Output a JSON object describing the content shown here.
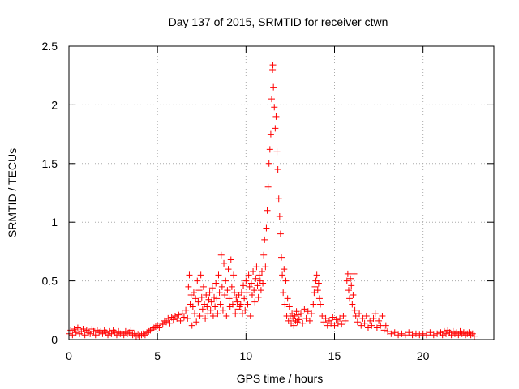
{
  "chart_data": {
    "type": "scatter",
    "title": "Day 137 of 2015, SRMTID for receiver ctwn",
    "xlabel": "GPS time / hours",
    "ylabel": "SRMTID / TECUs",
    "xlim": [
      0,
      24.0
    ],
    "ylim": [
      0,
      2.5
    ],
    "xticks": [
      "0",
      "5",
      "10",
      "15",
      "20"
    ],
    "yticks": [
      "0",
      "0.5",
      "1",
      "1.5",
      "2",
      "2.5"
    ],
    "grid": true,
    "marker": "+",
    "color": "#ff0000",
    "series": [
      {
        "name": "SRMTID",
        "points": [
          [
            0.0,
            0.05
          ],
          [
            0.1,
            0.08
          ],
          [
            0.2,
            0.04
          ],
          [
            0.3,
            0.09
          ],
          [
            0.4,
            0.06
          ],
          [
            0.5,
            0.1
          ],
          [
            0.6,
            0.05
          ],
          [
            0.7,
            0.07
          ],
          [
            0.8,
            0.09
          ],
          [
            0.9,
            0.04
          ],
          [
            1.0,
            0.08
          ],
          [
            1.1,
            0.06
          ],
          [
            1.2,
            0.05
          ],
          [
            1.3,
            0.09
          ],
          [
            1.4,
            0.07
          ],
          [
            1.5,
            0.04
          ],
          [
            1.6,
            0.08
          ],
          [
            1.7,
            0.06
          ],
          [
            1.8,
            0.07
          ],
          [
            1.9,
            0.05
          ],
          [
            2.0,
            0.08
          ],
          [
            2.1,
            0.06
          ],
          [
            2.2,
            0.04
          ],
          [
            2.3,
            0.07
          ],
          [
            2.4,
            0.05
          ],
          [
            2.5,
            0.08
          ],
          [
            2.6,
            0.06
          ],
          [
            2.7,
            0.04
          ],
          [
            2.8,
            0.07
          ],
          [
            2.9,
            0.05
          ],
          [
            3.0,
            0.06
          ],
          [
            3.1,
            0.04
          ],
          [
            3.2,
            0.07
          ],
          [
            3.3,
            0.05
          ],
          [
            3.4,
            0.06
          ],
          [
            3.5,
            0.08
          ],
          [
            3.6,
            0.04
          ],
          [
            3.7,
            0.05
          ],
          [
            3.8,
            0.03
          ],
          [
            3.9,
            0.04
          ],
          [
            4.0,
            0.03
          ],
          [
            4.1,
            0.04
          ],
          [
            4.2,
            0.05
          ],
          [
            4.3,
            0.04
          ],
          [
            4.4,
            0.06
          ],
          [
            4.5,
            0.07
          ],
          [
            4.6,
            0.08
          ],
          [
            4.7,
            0.09
          ],
          [
            4.8,
            0.1
          ],
          [
            4.9,
            0.11
          ],
          [
            5.0,
            0.12
          ],
          [
            5.1,
            0.1
          ],
          [
            5.2,
            0.14
          ],
          [
            5.3,
            0.13
          ],
          [
            5.4,
            0.16
          ],
          [
            5.5,
            0.15
          ],
          [
            5.6,
            0.18
          ],
          [
            5.7,
            0.14
          ],
          [
            5.8,
            0.19
          ],
          [
            5.9,
            0.17
          ],
          [
            6.0,
            0.2
          ],
          [
            6.1,
            0.18
          ],
          [
            6.2,
            0.21
          ],
          [
            6.3,
            0.16
          ],
          [
            6.4,
            0.22
          ],
          [
            6.5,
            0.19
          ],
          [
            6.6,
            0.25
          ],
          [
            6.7,
            0.18
          ],
          [
            6.75,
            0.45
          ],
          [
            6.8,
            0.55
          ],
          [
            6.85,
            0.3
          ],
          [
            6.9,
            0.38
          ],
          [
            6.95,
            0.12
          ],
          [
            7.0,
            0.28
          ],
          [
            7.05,
            0.4
          ],
          [
            7.1,
            0.22
          ],
          [
            7.15,
            0.35
          ],
          [
            7.2,
            0.15
          ],
          [
            7.25,
            0.5
          ],
          [
            7.3,
            0.32
          ],
          [
            7.35,
            0.42
          ],
          [
            7.4,
            0.2
          ],
          [
            7.45,
            0.55
          ],
          [
            7.5,
            0.36
          ],
          [
            7.55,
            0.26
          ],
          [
            7.6,
            0.45
          ],
          [
            7.65,
            0.3
          ],
          [
            7.7,
            0.18
          ],
          [
            7.75,
            0.38
          ],
          [
            7.8,
            0.28
          ],
          [
            7.85,
            0.22
          ],
          [
            7.9,
            0.34
          ],
          [
            7.95,
            0.4
          ],
          [
            8.0,
            0.25
          ],
          [
            8.05,
            0.32
          ],
          [
            8.1,
            0.44
          ],
          [
            8.15,
            0.2
          ],
          [
            8.2,
            0.36
          ],
          [
            8.25,
            0.28
          ],
          [
            8.3,
            0.48
          ],
          [
            8.35,
            0.35
          ],
          [
            8.4,
            0.22
          ],
          [
            8.45,
            0.55
          ],
          [
            8.5,
            0.4
          ],
          [
            8.55,
            0.3
          ],
          [
            8.6,
            0.72
          ],
          [
            8.65,
            0.45
          ],
          [
            8.7,
            0.25
          ],
          [
            8.75,
            0.65
          ],
          [
            8.8,
            0.38
          ],
          [
            8.85,
            0.5
          ],
          [
            8.9,
            0.2
          ],
          [
            8.95,
            0.42
          ],
          [
            9.0,
            0.6
          ],
          [
            9.05,
            0.35
          ],
          [
            9.1,
            0.28
          ],
          [
            9.15,
            0.68
          ],
          [
            9.2,
            0.45
          ],
          [
            9.25,
            0.3
          ],
          [
            9.3,
            0.55
          ],
          [
            9.35,
            0.4
          ],
          [
            9.4,
            0.22
          ],
          [
            9.45,
            0.36
          ],
          [
            9.5,
            0.32
          ],
          [
            9.55,
            0.26
          ],
          [
            9.6,
            0.38
          ],
          [
            9.65,
            0.28
          ],
          [
            9.7,
            0.3
          ],
          [
            9.75,
            0.4
          ],
          [
            9.8,
            0.22
          ],
          [
            9.85,
            0.46
          ],
          [
            9.9,
            0.35
          ],
          [
            9.95,
            0.25
          ],
          [
            10.0,
            0.5
          ],
          [
            10.05,
            0.4
          ],
          [
            10.1,
            0.3
          ],
          [
            10.15,
            0.55
          ],
          [
            10.2,
            0.45
          ],
          [
            10.25,
            0.2
          ],
          [
            10.3,
            0.48
          ],
          [
            10.35,
            0.38
          ],
          [
            10.4,
            0.58
          ],
          [
            10.45,
            0.42
          ],
          [
            10.5,
            0.32
          ],
          [
            10.55,
            0.52
          ],
          [
            10.6,
            0.62
          ],
          [
            10.65,
            0.46
          ],
          [
            10.7,
            0.36
          ],
          [
            10.75,
            0.55
          ],
          [
            10.8,
            0.5
          ],
          [
            10.85,
            0.42
          ],
          [
            10.9,
            0.58
          ],
          [
            10.95,
            0.48
          ],
          [
            11.0,
            0.72
          ],
          [
            11.05,
            0.85
          ],
          [
            11.1,
            0.62
          ],
          [
            11.15,
            0.95
          ],
          [
            11.2,
            1.1
          ],
          [
            11.25,
            1.3
          ],
          [
            11.3,
            1.5
          ],
          [
            11.35,
            1.62
          ],
          [
            11.4,
            1.75
          ],
          [
            11.45,
            2.05
          ],
          [
            11.5,
            2.3
          ],
          [
            11.52,
            2.34
          ],
          [
            11.55,
            2.15
          ],
          [
            11.6,
            1.98
          ],
          [
            11.65,
            1.8
          ],
          [
            11.7,
            1.9
          ],
          [
            11.75,
            1.6
          ],
          [
            11.8,
            1.45
          ],
          [
            11.85,
            1.2
          ],
          [
            11.9,
            1.05
          ],
          [
            11.95,
            0.9
          ],
          [
            12.0,
            0.7
          ],
          [
            12.05,
            0.55
          ],
          [
            12.1,
            0.4
          ],
          [
            12.15,
            0.6
          ],
          [
            12.2,
            0.3
          ],
          [
            12.25,
            0.5
          ],
          [
            12.3,
            0.2
          ],
          [
            12.35,
            0.35
          ],
          [
            12.4,
            0.16
          ],
          [
            12.45,
            0.28
          ],
          [
            12.5,
            0.2
          ],
          [
            12.55,
            0.14
          ],
          [
            12.6,
            0.22
          ],
          [
            12.65,
            0.18
          ],
          [
            12.7,
            0.12
          ],
          [
            12.75,
            0.2
          ],
          [
            12.8,
            0.16
          ],
          [
            12.85,
            0.24
          ],
          [
            12.9,
            0.15
          ],
          [
            12.95,
            0.21
          ],
          [
            13.0,
            0.17
          ],
          [
            13.1,
            0.22
          ],
          [
            13.2,
            0.14
          ],
          [
            13.3,
            0.26
          ],
          [
            13.4,
            0.18
          ],
          [
            13.5,
            0.24
          ],
          [
            13.6,
            0.16
          ],
          [
            13.7,
            0.22
          ],
          [
            13.8,
            0.3
          ],
          [
            13.85,
            0.4
          ],
          [
            13.9,
            0.45
          ],
          [
            13.95,
            0.5
          ],
          [
            14.0,
            0.55
          ],
          [
            14.05,
            0.42
          ],
          [
            14.1,
            0.48
          ],
          [
            14.15,
            0.35
          ],
          [
            14.2,
            0.3
          ],
          [
            14.3,
            0.2
          ],
          [
            14.4,
            0.15
          ],
          [
            14.5,
            0.18
          ],
          [
            14.6,
            0.12
          ],
          [
            14.7,
            0.16
          ],
          [
            14.8,
            0.14
          ],
          [
            14.9,
            0.19
          ],
          [
            15.0,
            0.12
          ],
          [
            15.1,
            0.17
          ],
          [
            15.2,
            0.14
          ],
          [
            15.3,
            0.18
          ],
          [
            15.4,
            0.13
          ],
          [
            15.5,
            0.2
          ],
          [
            15.6,
            0.16
          ],
          [
            15.7,
            0.5
          ],
          [
            15.75,
            0.56
          ],
          [
            15.8,
            0.42
          ],
          [
            15.85,
            0.35
          ],
          [
            15.9,
            0.52
          ],
          [
            15.95,
            0.46
          ],
          [
            16.0,
            0.3
          ],
          [
            16.05,
            0.38
          ],
          [
            16.1,
            0.56
          ],
          [
            16.15,
            0.25
          ],
          [
            16.2,
            0.2
          ],
          [
            16.3,
            0.15
          ],
          [
            16.4,
            0.22
          ],
          [
            16.5,
            0.12
          ],
          [
            16.6,
            0.18
          ],
          [
            16.7,
            0.14
          ],
          [
            16.8,
            0.2
          ],
          [
            16.9,
            0.1
          ],
          [
            17.0,
            0.16
          ],
          [
            17.1,
            0.12
          ],
          [
            17.2,
            0.18
          ],
          [
            17.3,
            0.22
          ],
          [
            17.4,
            0.1
          ],
          [
            17.5,
            0.16
          ],
          [
            17.6,
            0.12
          ],
          [
            17.7,
            0.2
          ],
          [
            17.8,
            0.08
          ],
          [
            17.9,
            0.12
          ],
          [
            18.0,
            0.07
          ],
          [
            18.2,
            0.05
          ],
          [
            18.4,
            0.06
          ],
          [
            18.6,
            0.04
          ],
          [
            18.8,
            0.05
          ],
          [
            19.0,
            0.04
          ],
          [
            19.2,
            0.06
          ],
          [
            19.4,
            0.04
          ],
          [
            19.6,
            0.05
          ],
          [
            19.8,
            0.04
          ],
          [
            20.0,
            0.05
          ],
          [
            20.2,
            0.04
          ],
          [
            20.4,
            0.06
          ],
          [
            20.6,
            0.04
          ],
          [
            20.8,
            0.05
          ],
          [
            21.0,
            0.06
          ],
          [
            21.1,
            0.04
          ],
          [
            21.2,
            0.07
          ],
          [
            21.3,
            0.05
          ],
          [
            21.4,
            0.08
          ],
          [
            21.5,
            0.06
          ],
          [
            21.6,
            0.04
          ],
          [
            21.7,
            0.07
          ],
          [
            21.8,
            0.05
          ],
          [
            21.9,
            0.06
          ],
          [
            22.0,
            0.04
          ],
          [
            22.1,
            0.07
          ],
          [
            22.2,
            0.05
          ],
          [
            22.3,
            0.06
          ],
          [
            22.4,
            0.04
          ],
          [
            22.5,
            0.05
          ],
          [
            22.6,
            0.06
          ],
          [
            22.7,
            0.04
          ],
          [
            22.8,
            0.05
          ],
          [
            22.9,
            0.03
          ]
        ]
      }
    ]
  }
}
